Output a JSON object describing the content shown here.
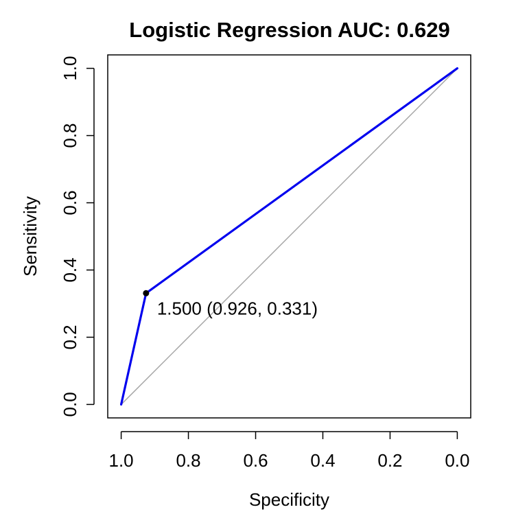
{
  "chart_data": {
    "type": "line",
    "title": "Logistic Regression AUC: 0.629",
    "xlabel": "Specificity",
    "ylabel": "Sensitivity",
    "xlim": [
      1.04,
      -0.04
    ],
    "ylim": [
      -0.04,
      1.04
    ],
    "x_reversed": true,
    "x_ticks": [
      1.0,
      0.8,
      0.6,
      0.4,
      0.2,
      0.0
    ],
    "x_tick_labels": [
      "1.0",
      "0.8",
      "0.6",
      "0.4",
      "0.2",
      "0.0"
    ],
    "y_ticks": [
      0.0,
      0.2,
      0.4,
      0.6,
      0.8,
      1.0
    ],
    "y_tick_labels": [
      "0.0",
      "0.2",
      "0.4",
      "0.6",
      "0.8",
      "1.0"
    ],
    "grid": false,
    "series": [
      {
        "role": "roc-curve",
        "color": "#0000ee",
        "x": [
          1.0,
          0.926,
          0.0
        ],
        "y": [
          0.0,
          0.331,
          1.0
        ]
      },
      {
        "role": "chance-diagonal",
        "color": "#a6a6a6",
        "x": [
          1.0,
          0.0
        ],
        "y": [
          0.0,
          1.0
        ]
      }
    ],
    "threshold_point": {
      "x": 0.926,
      "y": 0.331,
      "color": "#000000",
      "label": "1.500 (0.926, 0.331)"
    }
  }
}
